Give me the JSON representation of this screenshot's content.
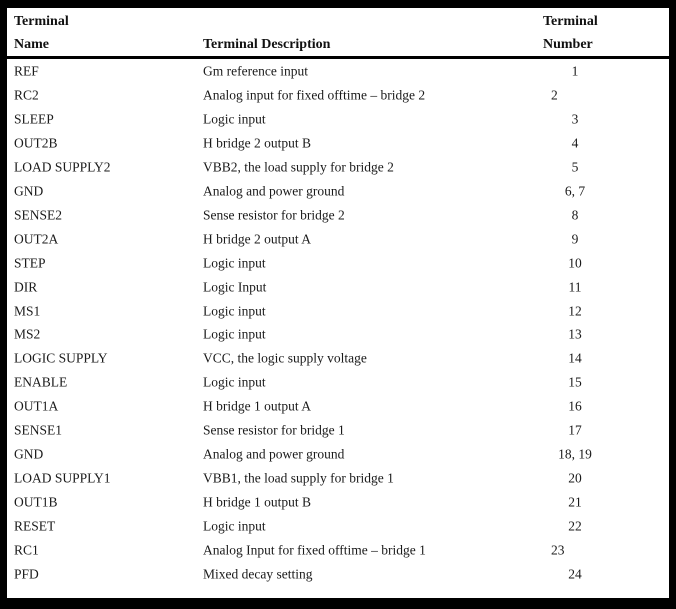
{
  "page": {
    "background": "#ffffff",
    "border_color": "#000000",
    "text_color": "#1a1a1a"
  },
  "table": {
    "header": {
      "name_line1": "Terminal",
      "name_line2": "Name",
      "description": "Terminal Description",
      "number_line1": "Terminal",
      "number_line2": "Number"
    },
    "rows": [
      {
        "name": "REF",
        "description": "Gm reference input",
        "number": "1",
        "number_align": "center"
      },
      {
        "name": "RC2",
        "description": "Analog input for fixed offtime – bridge 2",
        "number": "2",
        "number_align": "left"
      },
      {
        "name": "SLEEP",
        "description": "Logic input",
        "number": "3",
        "number_align": "center"
      },
      {
        "name": "OUT2B",
        "description": "H bridge 2 output B",
        "number": "4",
        "number_align": "center"
      },
      {
        "name": "LOAD SUPPLY2",
        "description": "VBB2, the load supply for bridge 2",
        "number": "5",
        "number_align": "center"
      },
      {
        "name": "GND",
        "description": "Analog and power ground",
        "number": "6, 7",
        "number_align": "center"
      },
      {
        "name": "SENSE2",
        "description": "Sense resistor for bridge 2",
        "number": "8",
        "number_align": "center"
      },
      {
        "name": "OUT2A",
        "description": "H bridge 2 output A",
        "number": "9",
        "number_align": "center"
      },
      {
        "name": "STEP",
        "description": "Logic input",
        "number": "10",
        "number_align": "center"
      },
      {
        "name": "DIR",
        "description": "Logic Input",
        "number": "11",
        "number_align": "center"
      },
      {
        "name": "MS1",
        "description": "Logic input",
        "number": "12",
        "number_align": "center"
      },
      {
        "name": "MS2",
        "description": "Logic input",
        "number": "13",
        "number_align": "center"
      },
      {
        "name": "LOGIC SUPPLY",
        "description": "VCC, the logic supply voltage",
        "number": "14",
        "number_align": "center"
      },
      {
        "name": "ENABLE",
        "description": "Logic input",
        "number": "15",
        "number_align": "center"
      },
      {
        "name": "OUT1A",
        "description": "H bridge 1 output A",
        "number": "16",
        "number_align": "center"
      },
      {
        "name": "SENSE1",
        "description": "Sense resistor for bridge 1",
        "number": "17",
        "number_align": "center"
      },
      {
        "name": "GND",
        "description": "Analog and power ground",
        "number": "18, 19",
        "number_align": "center"
      },
      {
        "name": "LOAD SUPPLY1",
        "description": "VBB1, the load supply for bridge 1",
        "number": "20",
        "number_align": "center"
      },
      {
        "name": "OUT1B",
        "description": "H bridge 1 output B",
        "number": "21",
        "number_align": "center"
      },
      {
        "name": "RESET",
        "description": "Logic input",
        "number": "22",
        "number_align": "center"
      },
      {
        "name": "RC1",
        "description": "Analog Input for fixed offtime – bridge 1",
        "number": "23",
        "number_align": "left"
      },
      {
        "name": "PFD",
        "description": "Mixed decay setting",
        "number": "24",
        "number_align": "center"
      }
    ]
  }
}
